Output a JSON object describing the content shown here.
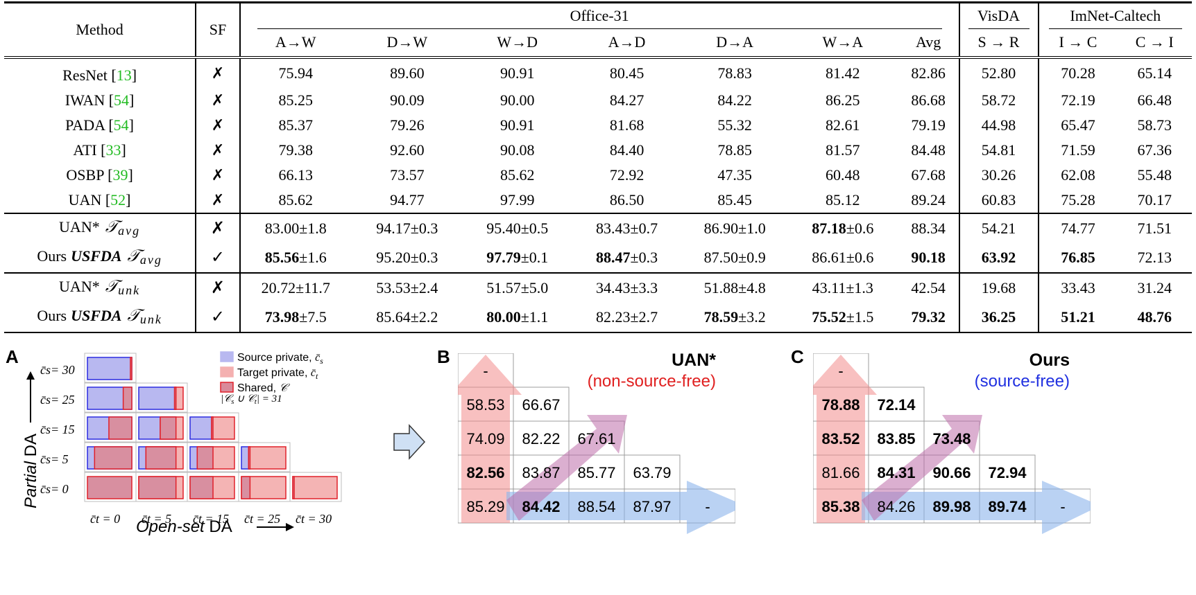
{
  "table": {
    "head": {
      "method": "Method",
      "sf": "SF",
      "office": "Office-31",
      "visda": "VisDA",
      "imnet": "ImNet-Caltech",
      "cols": [
        "A→W",
        "D→W",
        "W→D",
        "A→D",
        "D→A",
        "W→A",
        "Avg",
        "S → R",
        "I → C",
        "C → I"
      ]
    },
    "baselines": [
      {
        "name": "ResNet [",
        "ref": "13",
        "close": "]",
        "sf": "✗",
        "vals": [
          "75.94",
          "89.60",
          "90.91",
          "80.45",
          "78.83",
          "81.42",
          "82.86",
          "52.80",
          "70.28",
          "65.14"
        ]
      },
      {
        "name": "IWAN [",
        "ref": "54",
        "close": "]",
        "sf": "✗",
        "vals": [
          "85.25",
          "90.09",
          "90.00",
          "84.27",
          "84.22",
          "86.25",
          "86.68",
          "58.72",
          "72.19",
          "66.48"
        ]
      },
      {
        "name": "PADA [",
        "ref": "54",
        "close": "]",
        "sf": "✗",
        "vals": [
          "85.37",
          "79.26",
          "90.91",
          "81.68",
          "55.32",
          "82.61",
          "79.19",
          "44.98",
          "65.47",
          "58.73"
        ]
      },
      {
        "name": "ATI  [",
        "ref": "33",
        "close": "]",
        "sf": "✗",
        "vals": [
          "79.38",
          "92.60",
          "90.08",
          "84.40",
          "78.85",
          "81.57",
          "84.48",
          "54.81",
          "71.59",
          "67.36"
        ]
      },
      {
        "name": "OSBP [",
        "ref": "39",
        "close": "]",
        "sf": "✗",
        "vals": [
          "66.13",
          "73.57",
          "85.62",
          "72.92",
          "47.35",
          "60.48",
          "67.68",
          "30.26",
          "62.08",
          "55.48"
        ]
      },
      {
        "name": "UAN [",
        "ref": "52",
        "close": "]",
        "sf": "✗",
        "vals": [
          "85.62",
          "94.77",
          "97.99",
          "86.50",
          "85.45",
          "85.12",
          "89.24",
          "60.83",
          "75.28",
          "70.17"
        ]
      }
    ],
    "avg_rows": [
      {
        "prefix": "UAN*",
        "usfda": "",
        "metric": "𝒯",
        "sub": "avg",
        "sf": "✗",
        "vals": [
          {
            "m": "83.00",
            "s": "±1.8",
            "b": false
          },
          {
            "m": "94.17",
            "s": "±0.3",
            "b": false
          },
          {
            "m": "95.40",
            "s": "±0.5",
            "b": false
          },
          {
            "m": "83.43",
            "s": "±0.7",
            "b": false
          },
          {
            "m": "86.90",
            "s": "±1.0",
            "b": false
          },
          {
            "m": "87.18",
            "s": "±0.6",
            "b": true
          },
          {
            "m": "88.34",
            "s": "",
            "b": false
          },
          {
            "m": "54.21",
            "s": "",
            "b": false
          },
          {
            "m": "74.77",
            "s": "",
            "b": false
          },
          {
            "m": "71.51",
            "s": "",
            "b": false
          }
        ]
      },
      {
        "prefix": "Ours",
        "usfda": "USFDA",
        "metric": "𝒯",
        "sub": "avg",
        "sf": "✓",
        "vals": [
          {
            "m": "85.56",
            "s": "±1.6",
            "b": true
          },
          {
            "m": "95.20",
            "s": "±0.3",
            "b": false
          },
          {
            "m": "97.79",
            "s": "±0.1",
            "b": true
          },
          {
            "m": "88.47",
            "s": "±0.3",
            "b": true
          },
          {
            "m": "87.50",
            "s": "±0.9",
            "b": false
          },
          {
            "m": "86.61",
            "s": "±0.6",
            "b": false
          },
          {
            "m": "90.18",
            "s": "",
            "b": true
          },
          {
            "m": "63.92",
            "s": "",
            "b": true
          },
          {
            "m": "76.85",
            "s": "",
            "b": true
          },
          {
            "m": "72.13",
            "s": "",
            "b": false
          }
        ]
      }
    ],
    "unk_rows": [
      {
        "prefix": "UAN*",
        "usfda": "",
        "metric": "𝒯",
        "sub": "unk",
        "sf": "✗",
        "vals": [
          {
            "m": "20.72",
            "s": "±11.7",
            "b": false
          },
          {
            "m": "53.53",
            "s": "±2.4",
            "b": false
          },
          {
            "m": "51.57",
            "s": "±5.0",
            "b": false
          },
          {
            "m": "34.43",
            "s": "±3.3",
            "b": false
          },
          {
            "m": "51.88",
            "s": "±4.8",
            "b": false
          },
          {
            "m": "43.11",
            "s": "±1.3",
            "b": false
          },
          {
            "m": "42.54",
            "s": "",
            "b": false
          },
          {
            "m": "19.68",
            "s": "",
            "b": false
          },
          {
            "m": "33.43",
            "s": "",
            "b": false
          },
          {
            "m": "31.24",
            "s": "",
            "b": false
          }
        ]
      },
      {
        "prefix": "Ours",
        "usfda": "USFDA",
        "metric": "𝒯",
        "sub": "unk",
        "sf": "✓",
        "vals": [
          {
            "m": "73.98",
            "s": "±7.5",
            "b": true
          },
          {
            "m": "85.64",
            "s": "±2.2",
            "b": false
          },
          {
            "m": "80.00",
            "s": "±1.1",
            "b": true
          },
          {
            "m": "82.23",
            "s": "±2.7",
            "b": false
          },
          {
            "m": "78.59",
            "s": "±3.2",
            "b": true
          },
          {
            "m": "75.52",
            "s": "±1.5",
            "b": true
          },
          {
            "m": "79.32",
            "s": "",
            "b": true
          },
          {
            "m": "36.25",
            "s": "",
            "b": true
          },
          {
            "m": "51.21",
            "s": "",
            "b": true
          },
          {
            "m": "48.76",
            "s": "",
            "b": true
          }
        ]
      }
    ]
  },
  "panelA": {
    "letter": "A",
    "legend": [
      {
        "label": "Source private, ",
        "sym": "c̄",
        "sub": "s",
        "fill": "#b8b8f0",
        "stroke": "#b8b8f0"
      },
      {
        "label": "Target private, ",
        "sym": "c̄",
        "sub": "t",
        "fill": "#f4b0b0",
        "stroke": "#f4b0b0"
      },
      {
        "label": "Shared, ",
        "sym": "𝒞",
        "sub": "",
        "fill": "#d98a9a",
        "stroke": "#e0202a"
      }
    ],
    "union": "|𝒞",
    "union_rest": " ∪ 𝒞",
    "union_eq": "| = 31",
    "ylabels": [
      "c̄s= 30",
      "c̄s= 25",
      "c̄s= 15",
      "c̄s= 5",
      "c̄s= 0"
    ],
    "xlabels": [
      "c̄t = 0",
      "c̄t = 5",
      "c̄t = 15",
      "c̄t = 25",
      "c̄t = 30"
    ],
    "ytitle_it": "Partial",
    "ytitle": " DA",
    "xtitle_it": "Open-set",
    "xtitle": " DA",
    "cs": [
      30,
      25,
      15,
      5,
      0
    ],
    "ct": [
      0,
      5,
      15,
      25,
      30
    ],
    "total": 31,
    "colors": {
      "source": "#b8b8f0",
      "target": "#f4b4b4",
      "shared": "#d88fa0",
      "shared_stroke": "#e0202a",
      "source_stroke": "#2a2ae0"
    }
  },
  "panelB": {
    "letter": "B",
    "title": "UAN*",
    "subtitle": "(non-source-free)",
    "subtitle_color": "#e02020",
    "rows": [
      [
        {
          "v": "-",
          "b": false
        }
      ],
      [
        {
          "v": "58.53",
          "b": false
        },
        {
          "v": "66.67",
          "b": false
        }
      ],
      [
        {
          "v": "74.09",
          "b": false
        },
        {
          "v": "82.22",
          "b": false
        },
        {
          "v": "67.61",
          "b": false
        }
      ],
      [
        {
          "v": "82.56",
          "b": true
        },
        {
          "v": "83.87",
          "b": false
        },
        {
          "v": "85.77",
          "b": false
        },
        {
          "v": "63.79",
          "b": false
        }
      ],
      [
        {
          "v": "85.29",
          "b": false
        },
        {
          "v": "84.42",
          "b": true
        },
        {
          "v": "88.54",
          "b": false
        },
        {
          "v": "87.97",
          "b": false
        },
        {
          "v": "-",
          "b": false
        }
      ]
    ]
  },
  "panelC": {
    "letter": "C",
    "title": "Ours",
    "subtitle": "(source-free)",
    "subtitle_color": "#2030e0",
    "rows": [
      [
        {
          "v": "-",
          "b": false
        }
      ],
      [
        {
          "v": "78.88",
          "b": true
        },
        {
          "v": "72.14",
          "b": true
        }
      ],
      [
        {
          "v": "83.52",
          "b": true
        },
        {
          "v": "83.85",
          "b": true
        },
        {
          "v": "73.48",
          "b": true
        }
      ],
      [
        {
          "v": "81.66",
          "b": false
        },
        {
          "v": "84.31",
          "b": true
        },
        {
          "v": "90.66",
          "b": true
        },
        {
          "v": "72.94",
          "b": true
        }
      ],
      [
        {
          "v": "85.38",
          "b": true
        },
        {
          "v": "84.26",
          "b": false
        },
        {
          "v": "89.98",
          "b": true
        },
        {
          "v": "89.74",
          "b": true
        },
        {
          "v": "-",
          "b": false
        }
      ]
    ]
  }
}
